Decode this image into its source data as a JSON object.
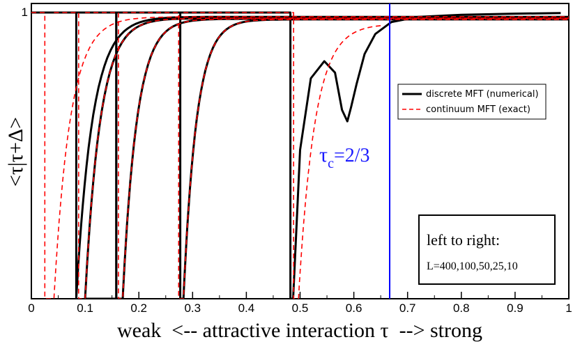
{
  "chart_data": {
    "type": "line",
    "xlabel": "weak  <-- attractive interaction τ  --> strong",
    "ylabel": "<τ|τ+Δ>",
    "xlim": [
      0,
      1
    ],
    "ylim": [
      0,
      1
    ],
    "x_ticks": [
      "0",
      "0.1",
      "0.2",
      "0.3",
      "0.4",
      "0.5",
      "0.6",
      "0.7",
      "0.8",
      "0.9",
      "1"
    ],
    "x_tick_values": [
      0,
      0.1,
      0.2,
      0.3,
      0.4,
      0.5,
      0.6,
      0.7,
      0.8,
      0.9,
      1
    ],
    "y_ticks": [
      "1"
    ],
    "y_tick_values": [
      1
    ],
    "grid": false,
    "legend": {
      "position": "right",
      "entries": [
        {
          "label": "discrete MFT (numerical)",
          "color": "#000000",
          "style": "solid"
        },
        {
          "label": "continuum MFT (exact)",
          "color": "#ff0000",
          "style": "dashed"
        }
      ]
    },
    "critical_line": {
      "x": 0.6667,
      "color": "#0000ff",
      "label_main": "τ",
      "label_sub": "c",
      "label_rest": "=2/3"
    },
    "annotation_box": {
      "line1": "left to right:",
      "line2": "L=400,100,50,25,10"
    },
    "series": [
      {
        "name": "discrete MFT (numerical)",
        "L": 400,
        "color": "#000000",
        "plateau_from": 0.0,
        "drop_x": 0.0835,
        "rise_x": 0.0835,
        "approach": 0.985,
        "width": 0.03
      },
      {
        "name": "continuum MFT (exact)",
        "L": 400,
        "color": "#ff0000",
        "plateau_from": 0.0,
        "drop_x": 0.025,
        "rise_x": 0.042,
        "approach": 0.985,
        "width": 0.03
      },
      {
        "name": "continuum MFT (exact)",
        "L": 100,
        "color": "#ff0000",
        "plateau_from": 0.042,
        "drop_x": 0.088,
        "rise_x": 0.1,
        "approach": 0.98,
        "width": 0.028
      },
      {
        "name": "discrete MFT (numerical)",
        "L": 100,
        "color": "#000000",
        "plateau_from": 0.0835,
        "drop_x": 0.158,
        "rise_x": 0.1,
        "approach": 0.98,
        "width": 0.028
      },
      {
        "name": "continuum MFT (exact)",
        "L": 50,
        "color": "#ff0000",
        "plateau_from": 0.1,
        "drop_x": 0.162,
        "rise_x": 0.17,
        "approach": 0.978,
        "width": 0.026
      },
      {
        "name": "discrete MFT (numerical)",
        "L": 50,
        "color": "#000000",
        "plateau_from": 0.158,
        "drop_x": 0.158,
        "rise_x": 0.17,
        "approach": 0.978,
        "width": 0.026
      },
      {
        "name": "continuum MFT (exact)",
        "L": 25,
        "color": "#ff0000",
        "plateau_from": 0.17,
        "drop_x": 0.274,
        "rise_x": 0.283,
        "approach": 0.976,
        "width": 0.024
      },
      {
        "name": "discrete MFT (numerical)",
        "L": 25,
        "color": "#000000",
        "plateau_from": 0.158,
        "drop_x": 0.277,
        "rise_x": 0.283,
        "approach": 0.976,
        "width": 0.024
      },
      {
        "name": "continuum MFT (exact)",
        "L": 10,
        "color": "#ff0000",
        "plateau_from": 0.283,
        "drop_x": 0.488,
        "rise_x": 0.497,
        "end_x": 0.65,
        "approach": 0.96,
        "width": 0.03
      },
      {
        "name": "discrete MFT (numerical)",
        "L": 10,
        "color": "#000000",
        "plateau_from": 0.277,
        "drop_x": 0.482,
        "rise_x": 0.487,
        "end_x": 0.985,
        "dip_points": [
          [
            0.487,
            0.0
          ],
          [
            0.5,
            0.52
          ],
          [
            0.52,
            0.77
          ],
          [
            0.545,
            0.83
          ],
          [
            0.565,
            0.79
          ],
          [
            0.578,
            0.66
          ],
          [
            0.588,
            0.62
          ],
          [
            0.595,
            0.67
          ],
          [
            0.605,
            0.75
          ],
          [
            0.62,
            0.855
          ],
          [
            0.64,
            0.925
          ],
          [
            0.67,
            0.967
          ],
          [
            0.72,
            0.985
          ],
          [
            0.8,
            0.992
          ],
          [
            0.9,
            0.996
          ],
          [
            0.985,
            0.998
          ]
        ]
      }
    ]
  }
}
